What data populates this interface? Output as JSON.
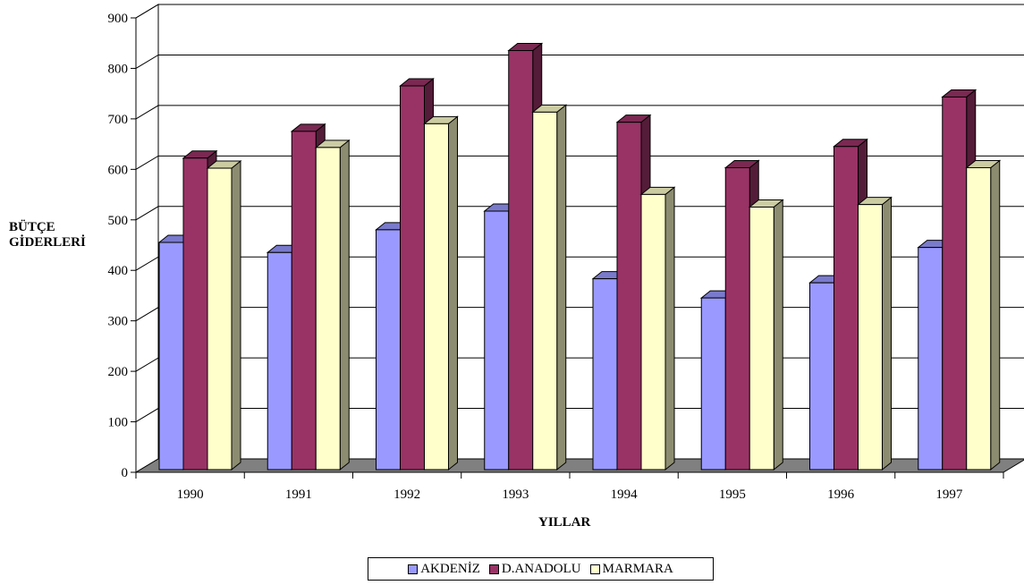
{
  "chart_data": {
    "type": "bar",
    "xlabel": "YILLAR",
    "ylabel": "BÜTÇE GİDERLERİ",
    "ylabel_lines": [
      "BÜTÇE",
      "GİDERLERİ"
    ],
    "categories": [
      "1990",
      "1991",
      "1992",
      "1993",
      "1994",
      "1995",
      "1996",
      "1997"
    ],
    "ylim": [
      0,
      900
    ],
    "yticks": [
      "0",
      "100",
      "200",
      "300",
      "400",
      "500",
      "600",
      "700",
      "800",
      "900"
    ],
    "grid": true,
    "legend_position": "bottom",
    "series": [
      {
        "name": "AKDENİZ",
        "color": "#9999FF",
        "values": [
          450,
          430,
          475,
          512,
          378,
          340,
          370,
          440
        ]
      },
      {
        "name": "D.ANADOLU",
        "color": "#993366",
        "values": [
          617,
          670,
          760,
          830,
          688,
          598,
          640,
          738
        ]
      },
      {
        "name": "MARMARA",
        "color": "#FFFFCC",
        "values": [
          597,
          638,
          685,
          708,
          545,
          520,
          525,
          598
        ]
      }
    ]
  }
}
